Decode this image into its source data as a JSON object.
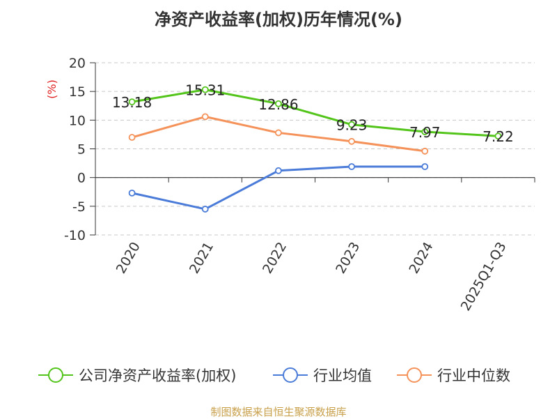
{
  "chart_data": {
    "type": "line",
    "title": "净资产收益率(加权)历年情况(%)",
    "ylabel": "(%)",
    "xlabel": "",
    "ylim": [
      -10,
      20
    ],
    "yticks": [
      20,
      15,
      10,
      5,
      0,
      -5,
      -10
    ],
    "categories": [
      "2020",
      "2021",
      "2022",
      "2023",
      "2024",
      "2025Q1-Q3"
    ],
    "series": [
      {
        "name": "公司净资产收益率(加权)",
        "color": "#52c41a",
        "values": [
          13.18,
          15.31,
          12.86,
          9.23,
          7.97,
          7.22
        ],
        "labels": [
          "13.18",
          "15.31",
          "12.86",
          "9.23",
          "7.97",
          "7.22"
        ]
      },
      {
        "name": "行业均值",
        "color": "#4a7bd8",
        "values": [
          -2.7,
          -5.5,
          1.2,
          1.9,
          1.9,
          null
        ]
      },
      {
        "name": "行业中位数",
        "color": "#f4925a",
        "values": [
          7.0,
          10.6,
          7.8,
          6.3,
          4.6,
          null
        ]
      }
    ],
    "grid": true,
    "legend": "bottom"
  },
  "footer": "制图数据来自恒生聚源数据库"
}
